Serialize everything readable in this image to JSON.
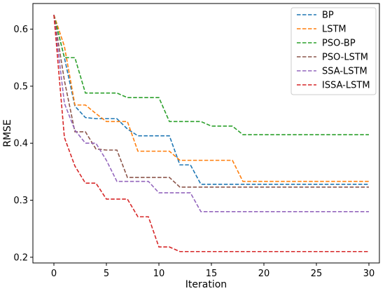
{
  "chart_data": {
    "type": "line",
    "title": "",
    "xlabel": "Iteration",
    "ylabel": "RMSE",
    "xlim": [
      -2,
      31
    ],
    "ylim": [
      0.19,
      0.645
    ],
    "xticks": [
      0,
      5,
      10,
      15,
      20,
      25,
      30
    ],
    "yticks": [
      0.2,
      0.3,
      0.4,
      0.5,
      0.6
    ],
    "grid": false,
    "legend_position": "top-right",
    "line_style": "dashed",
    "x": [
      0,
      1,
      2,
      3,
      4,
      5,
      6,
      7,
      8,
      9,
      10,
      11,
      12,
      13,
      14,
      15,
      16,
      17,
      18,
      19,
      20,
      21,
      22,
      23,
      24,
      25,
      26,
      27,
      28,
      29,
      30
    ],
    "series": [
      {
        "name": "BP",
        "color": "#1f77b4",
        "values": [
          0.625,
          0.55,
          0.465,
          0.445,
          0.443,
          0.443,
          0.443,
          0.425,
          0.413,
          0.413,
          0.413,
          0.413,
          0.362,
          0.362,
          0.328,
          0.328,
          0.328,
          0.328,
          0.328,
          0.328,
          0.328,
          0.328,
          0.328,
          0.328,
          0.328,
          0.328,
          0.328,
          0.328,
          0.328,
          0.328,
          0.328
        ]
      },
      {
        "name": "LSTM",
        "color": "#ff7f0e",
        "values": [
          0.625,
          0.57,
          0.467,
          0.467,
          0.452,
          0.438,
          0.438,
          0.438,
          0.386,
          0.386,
          0.386,
          0.386,
          0.37,
          0.37,
          0.37,
          0.37,
          0.37,
          0.37,
          0.333,
          0.333,
          0.333,
          0.333,
          0.333,
          0.333,
          0.333,
          0.333,
          0.333,
          0.333,
          0.333,
          0.333,
          0.333
        ]
      },
      {
        "name": "PSO-BP",
        "color": "#2ca02c",
        "values": [
          0.625,
          0.55,
          0.55,
          0.488,
          0.488,
          0.488,
          0.488,
          0.48,
          0.48,
          0.48,
          0.48,
          0.438,
          0.438,
          0.438,
          0.438,
          0.43,
          0.43,
          0.43,
          0.415,
          0.415,
          0.415,
          0.415,
          0.415,
          0.415,
          0.415,
          0.415,
          0.415,
          0.415,
          0.415,
          0.415,
          0.415
        ]
      },
      {
        "name": "PSO-LSTM",
        "color": "#8c564b",
        "values": [
          0.625,
          0.51,
          0.42,
          0.42,
          0.39,
          0.388,
          0.388,
          0.34,
          0.34,
          0.34,
          0.34,
          0.34,
          0.323,
          0.323,
          0.323,
          0.323,
          0.323,
          0.323,
          0.323,
          0.323,
          0.323,
          0.323,
          0.323,
          0.323,
          0.323,
          0.323,
          0.323,
          0.323,
          0.323,
          0.323,
          0.323
        ]
      },
      {
        "name": "SSA-LSTM",
        "color": "#9467bd",
        "values": [
          0.625,
          0.47,
          0.423,
          0.4,
          0.4,
          0.37,
          0.333,
          0.333,
          0.333,
          0.333,
          0.313,
          0.313,
          0.313,
          0.313,
          0.28,
          0.28,
          0.28,
          0.28,
          0.28,
          0.28,
          0.28,
          0.28,
          0.28,
          0.28,
          0.28,
          0.28,
          0.28,
          0.28,
          0.28,
          0.28,
          0.28
        ]
      },
      {
        "name": "ISSA-LSTM",
        "color": "#d62728",
        "values": [
          0.625,
          0.41,
          0.36,
          0.33,
          0.33,
          0.302,
          0.302,
          0.302,
          0.271,
          0.271,
          0.218,
          0.218,
          0.21,
          0.21,
          0.21,
          0.21,
          0.21,
          0.21,
          0.21,
          0.21,
          0.21,
          0.21,
          0.21,
          0.21,
          0.21,
          0.21,
          0.21,
          0.21,
          0.21,
          0.21,
          0.21
        ]
      }
    ]
  }
}
